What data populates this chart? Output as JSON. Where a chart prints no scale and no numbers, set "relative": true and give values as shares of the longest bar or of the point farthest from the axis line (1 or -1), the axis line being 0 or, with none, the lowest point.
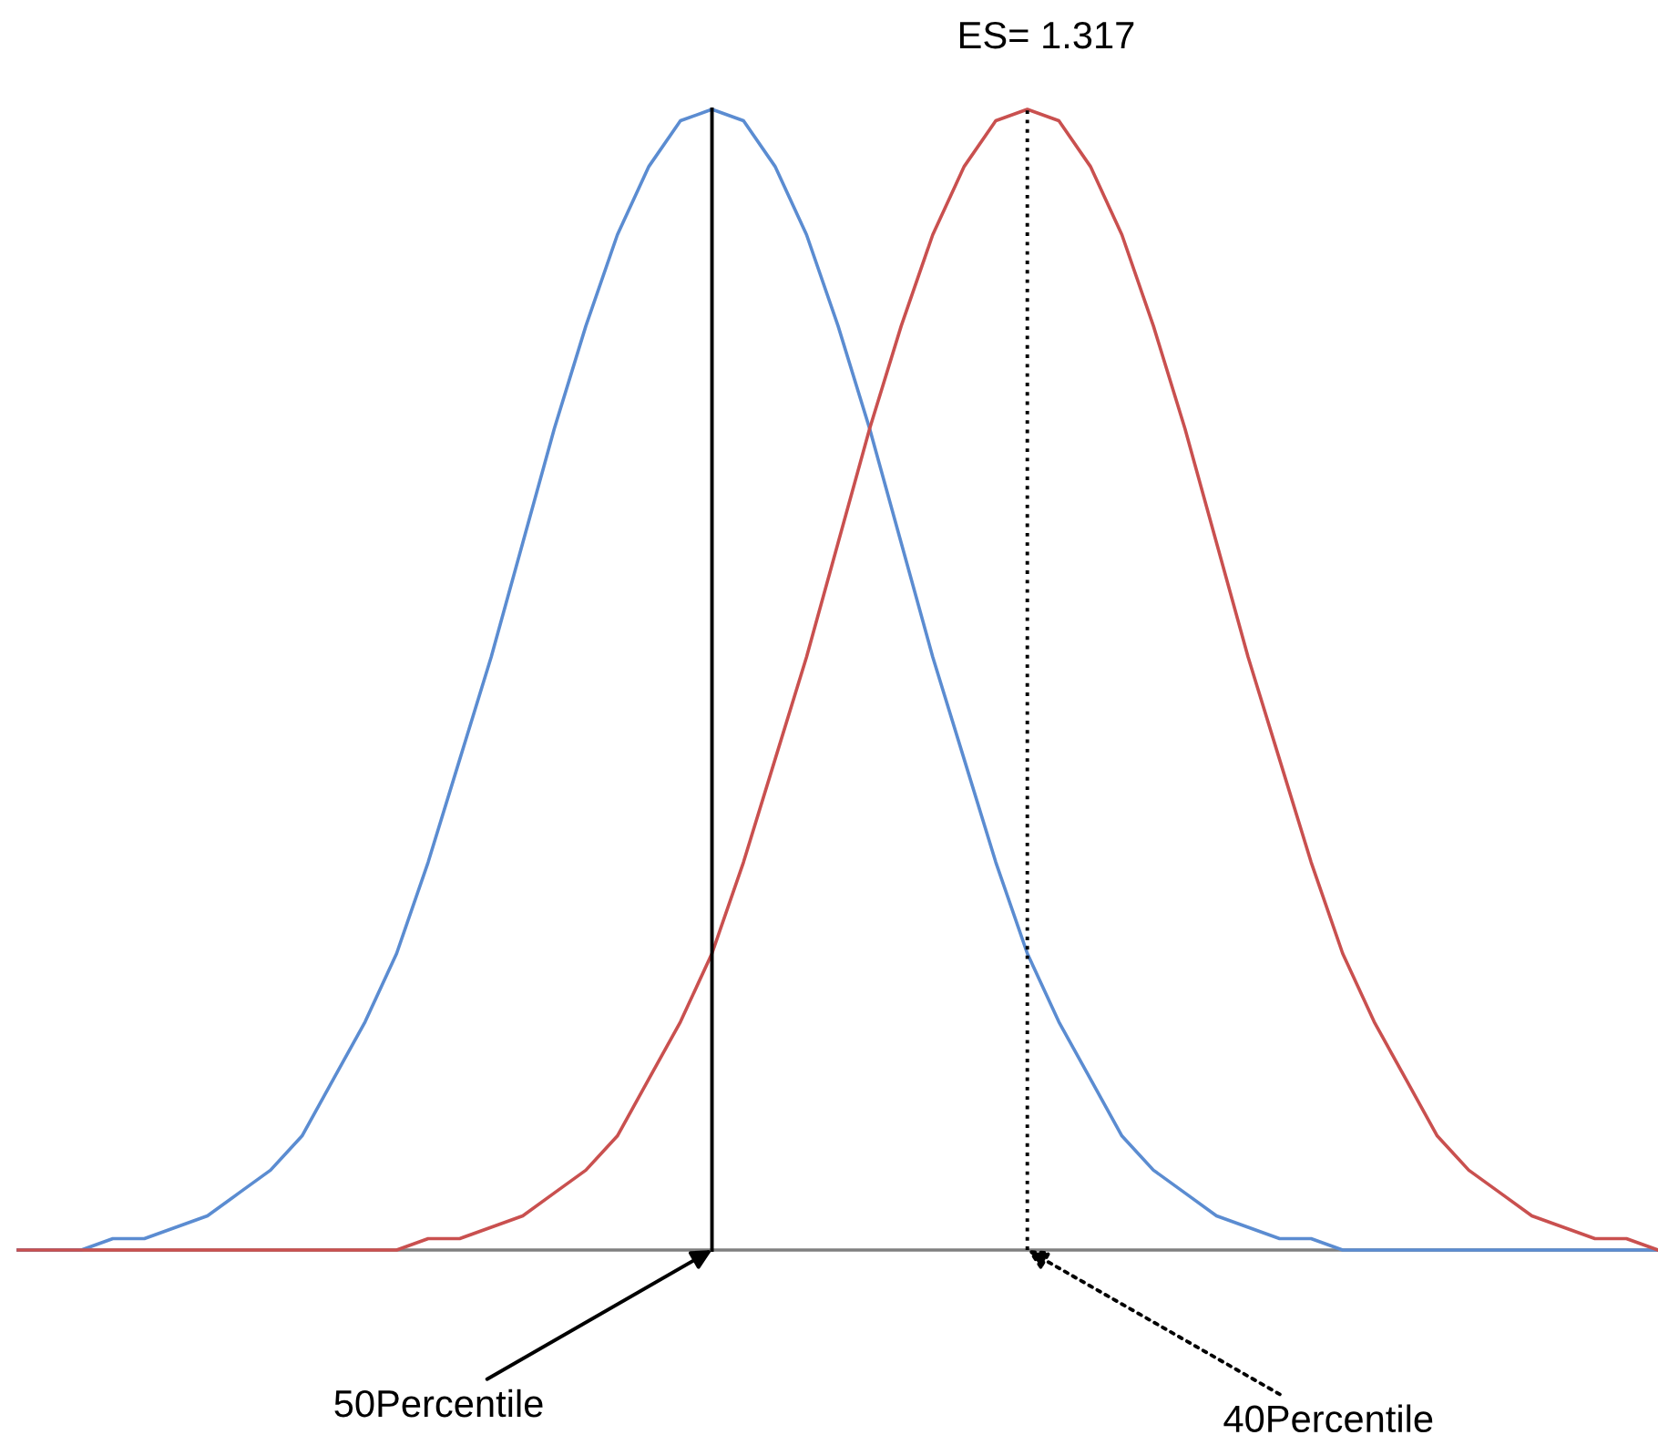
{
  "chart_data": {
    "type": "line",
    "relative": true,
    "categories": [
      null,
      null,
      null,
      null,
      null,
      null,
      null,
      null,
      null,
      null,
      null,
      null,
      null,
      null,
      null,
      null,
      null,
      null,
      null,
      null,
      null,
      null,
      null,
      null,
      null,
      null,
      null,
      null,
      null,
      null,
      null,
      null,
      null,
      null,
      null,
      null,
      null,
      null,
      null,
      null,
      null,
      null,
      null,
      null,
      null,
      null,
      null,
      null,
      null,
      null,
      null,
      null,
      null
    ],
    "series": [
      {
        "color": "#5b8cd1",
        "values": [
          0,
          0,
          0,
          0.01,
          0.01,
          0.02,
          0.03,
          0.05,
          0.07,
          0.1,
          0.15,
          0.2,
          0.26,
          0.34,
          0.43,
          0.52,
          0.62,
          0.72,
          0.81,
          0.89,
          0.95,
          0.99,
          1,
          0.99,
          0.95,
          0.89,
          0.81,
          0.72,
          0.62,
          0.52,
          0.43,
          0.34,
          0.26,
          0.2,
          0.15,
          0.1,
          0.07,
          0.05,
          0.03,
          0.02,
          0.01,
          0.01,
          0,
          0,
          0,
          0,
          0,
          0,
          0,
          0,
          0,
          0,
          0
        ]
      },
      {
        "color": "#c9504f",
        "values": [
          0,
          0,
          0,
          0,
          0,
          0,
          0,
          0,
          0,
          0,
          0,
          0,
          0,
          0.01,
          0.01,
          0.02,
          0.03,
          0.05,
          0.07,
          0.1,
          0.15,
          0.2,
          0.26,
          0.34,
          0.43,
          0.52,
          0.62,
          0.72,
          0.81,
          0.89,
          0.95,
          0.99,
          1,
          0.99,
          0.95,
          0.89,
          0.81,
          0.72,
          0.62,
          0.52,
          0.43,
          0.34,
          0.26,
          0.2,
          0.15,
          0.1,
          0.07,
          0.05,
          0.03,
          0.02,
          0.01,
          0.01,
          0
        ]
      }
    ],
    "annotations": [
      "ES= 1.317",
      "50Percentile",
      "40Percentile"
    ]
  }
}
